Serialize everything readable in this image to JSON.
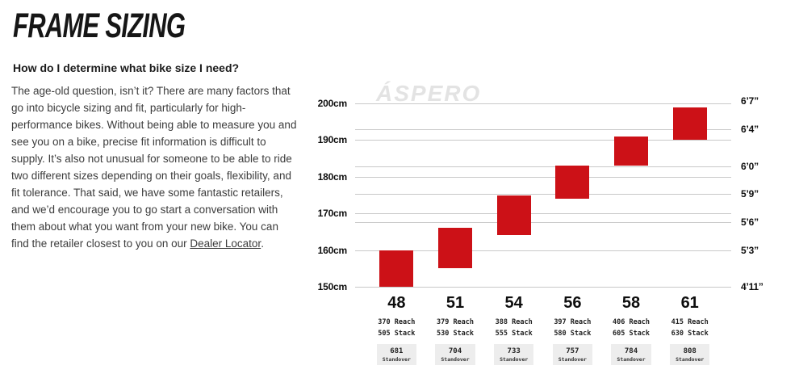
{
  "page": {
    "title": "FRAME SIZING",
    "question": "How do I determine what bike size I need?",
    "body_text": "The age-old question, isn’t it? There are many factors that go into bicycle sizing and fit, particularly for high-performance bikes. Without being able to measure you and see you on a bike, precise fit information is difficult to supply. It’s also not unusual for someone to be able to ride two different sizes depending on their goals, flexibility, and fit tolerance. That said, we have some fantastic retailers, and we’d encourage you to go start a conversation with them about what you want from your new bike. You can find the retailer closest to you on our ",
    "link_label": "Dealer Locator",
    "body_suffix": "."
  },
  "chart_data": {
    "type": "bar",
    "watermark": "ÁSPERO",
    "bar_color": "#cc1117",
    "grid": true,
    "legend": "none",
    "left_axis_unit": "cm",
    "right_axis_unit": "ft-in",
    "ylim_cm": [
      150,
      200
    ],
    "left_axis": [
      {
        "cm": 200,
        "label": "200cm"
      },
      {
        "cm": 190,
        "label": "190cm"
      },
      {
        "cm": 180,
        "label": "180cm"
      },
      {
        "cm": 170,
        "label": "170cm"
      },
      {
        "cm": 160,
        "label": "160cm"
      },
      {
        "cm": 150,
        "label": "150cm"
      }
    ],
    "right_axis": [
      {
        "cm": 200.7,
        "label": "6’7”",
        "line": false
      },
      {
        "cm": 193.0,
        "label": "6’4”",
        "line": true
      },
      {
        "cm": 182.9,
        "label": "6’0”",
        "line": true
      },
      {
        "cm": 175.3,
        "label": "5’9”",
        "line": true
      },
      {
        "cm": 167.6,
        "label": "5’6”",
        "line": true
      },
      {
        "cm": 160.0,
        "label": "5’3”",
        "line": false
      },
      {
        "cm": 149.9,
        "label": "4’11”",
        "line": false
      }
    ],
    "labels": {
      "reach": "Reach",
      "stack": "Stack",
      "standover": "Standover"
    },
    "sizes": [
      {
        "size": "48",
        "rider_height_cm": [
          150,
          160
        ],
        "reach": "370",
        "stack": "505",
        "standover": "681"
      },
      {
        "size": "51",
        "rider_height_cm": [
          155,
          166
        ],
        "reach": "379",
        "stack": "530",
        "standover": "704"
      },
      {
        "size": "54",
        "rider_height_cm": [
          164,
          175
        ],
        "reach": "388",
        "stack": "555",
        "standover": "733"
      },
      {
        "size": "56",
        "rider_height_cm": [
          174,
          183
        ],
        "reach": "397",
        "stack": "580",
        "standover": "757"
      },
      {
        "size": "58",
        "rider_height_cm": [
          183,
          191
        ],
        "reach": "406",
        "stack": "605",
        "standover": "784"
      },
      {
        "size": "61",
        "rider_height_cm": [
          190,
          199
        ],
        "reach": "415",
        "stack": "630",
        "standover": "808"
      }
    ]
  }
}
